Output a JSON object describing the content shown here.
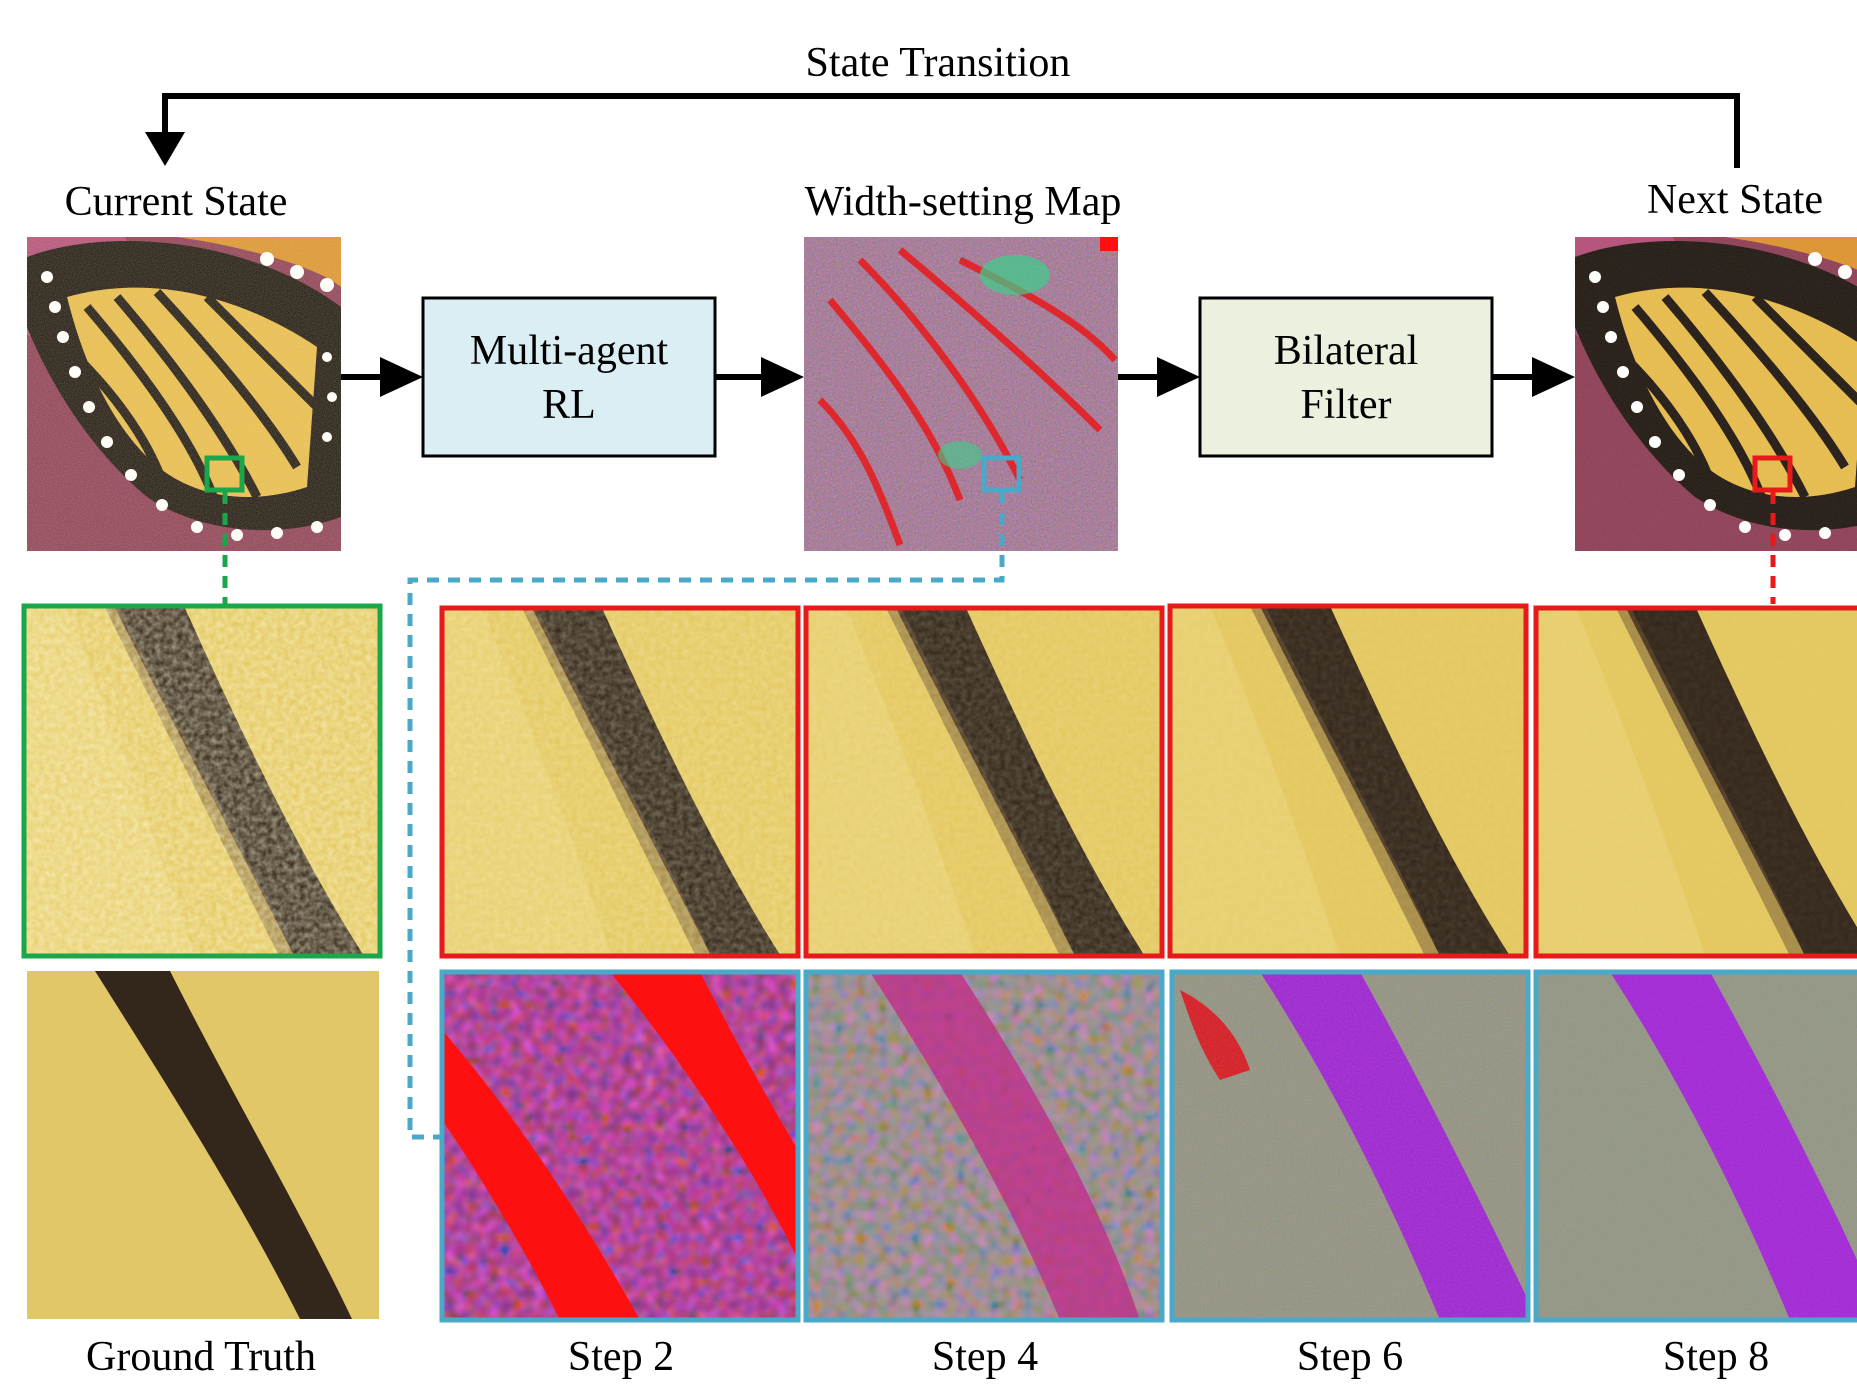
{
  "header": {
    "transition_label": "State Transition"
  },
  "top_row": {
    "current_state_label": "Current State",
    "width_map_label": "Width-setting Map",
    "next_state_label": "Next State",
    "rl_box": {
      "line1": "Multi-agent",
      "line2": "RL",
      "fill": "#daeef3"
    },
    "filter_box": {
      "line1": "Bilateral",
      "line2": "Filter",
      "fill": "#ebf1de"
    }
  },
  "bottom_labels": {
    "ground_truth": "Ground Truth",
    "step2": "Step 2",
    "step4": "Step 4",
    "step6": "Step 6",
    "step8": "Step 8"
  },
  "colors": {
    "green_highlight": "#1aa64a",
    "cyan_highlight": "#4aa8c8",
    "red_highlight": "#e8191b",
    "wing_yellow": "#e6c85a",
    "vein_dark": "#33261a",
    "map_red": "#ff1010",
    "map_purple": "#9a2ad0",
    "map_magenta": "#d02a8a",
    "map_green": "#8aa07a"
  },
  "icons": [
    "arrow-right-icon",
    "arrow-down-icon"
  ]
}
